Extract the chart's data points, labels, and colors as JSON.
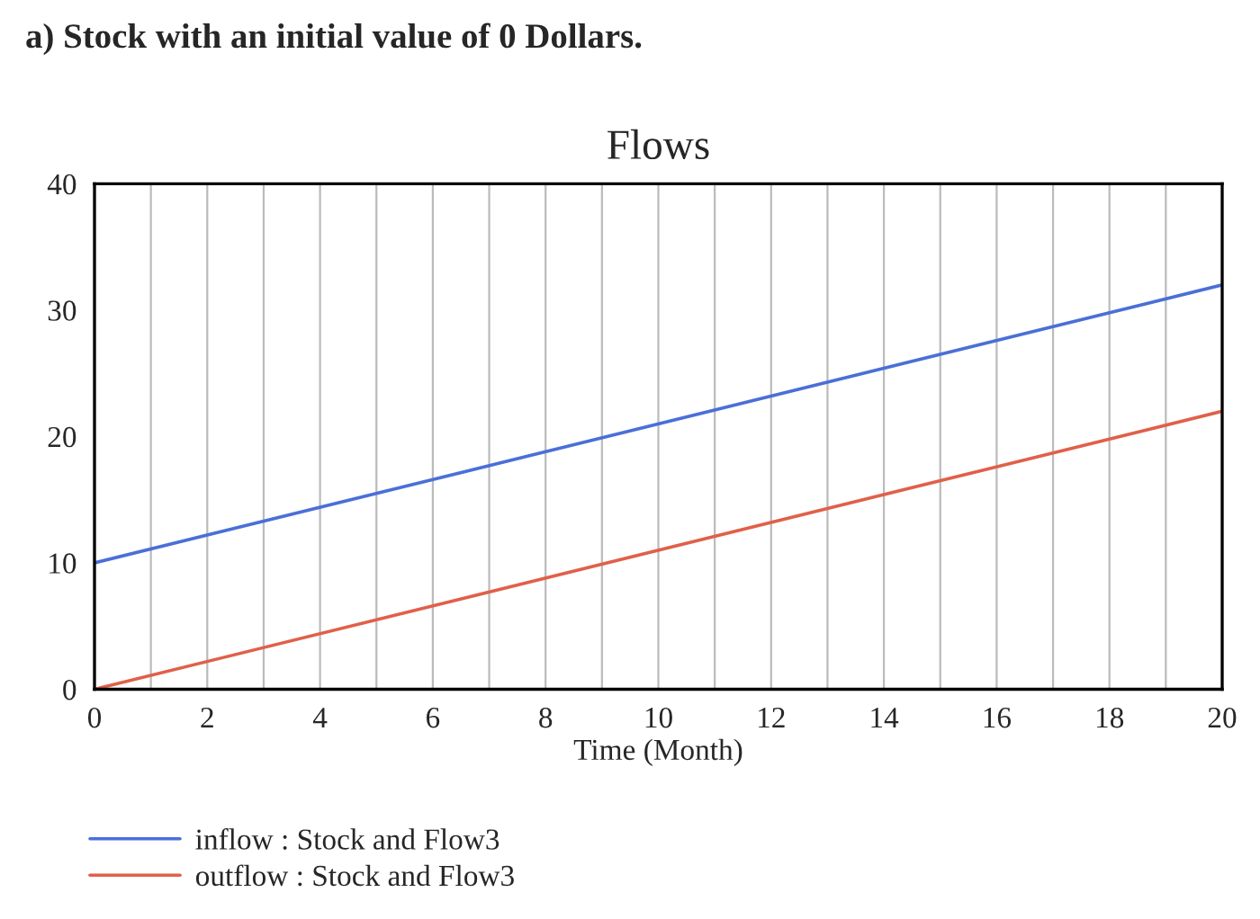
{
  "chart_data": {
    "type": "line",
    "title": "Flows",
    "xlabel": "Time (Month)",
    "annotations": [
      "a) Stock with an initial value of 0 Dollars."
    ],
    "x": [
      0,
      20
    ],
    "series": [
      {
        "name": "inflow : Stock and Flow3",
        "color": "#4a6fd8",
        "values": [
          10,
          32
        ]
      },
      {
        "name": "outflow : Stock and Flow3",
        "color": "#e0604a",
        "values": [
          0,
          22
        ]
      }
    ],
    "xlim": [
      0,
      20
    ],
    "ylim": [
      0,
      40
    ],
    "xticks": [
      0,
      {
        "value": 1,
        "label": null
      },
      2,
      {
        "value": 3,
        "label": null
      },
      4,
      {
        "value": 5,
        "label": null
      },
      6,
      {
        "value": 7,
        "label": null
      },
      8,
      {
        "value": 9,
        "label": null
      },
      10,
      {
        "value": 11,
        "label": null
      },
      12,
      {
        "value": 13,
        "label": null
      },
      14,
      {
        "value": 15,
        "label": null
      },
      16,
      {
        "value": 17,
        "label": null
      },
      18,
      {
        "value": 19,
        "label": null
      },
      20
    ],
    "yticks": [
      0,
      10,
      20,
      30,
      40
    ],
    "grid": "x",
    "legend": "bottom",
    "marker": "none",
    "line_style": "solid"
  }
}
